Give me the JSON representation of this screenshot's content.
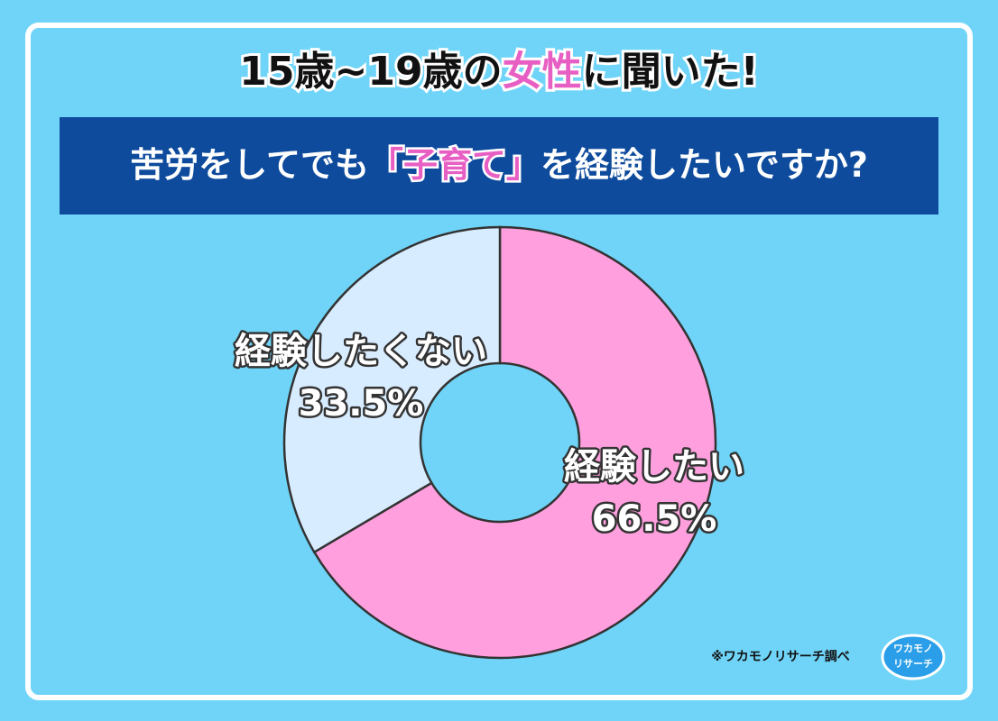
{
  "chart_data": {
    "type": "donut",
    "title": [
      "15歳~19歳の",
      "女性",
      "に聞いた!"
    ],
    "subtitle": [
      "苦労をしてでも",
      "「子育て」",
      "を経験したいですか?"
    ],
    "categories": [
      "経験したい",
      "経験したくない"
    ],
    "values": [
      66.5,
      33.5
    ],
    "value_labels": [
      "66.5%",
      "33.5%"
    ],
    "colors": [
      "#ff9fde",
      "#d8ecff"
    ],
    "source": "※ワカモノリサーチ調べ",
    "logo": [
      "ワカモノ",
      "リサーチ"
    ]
  }
}
